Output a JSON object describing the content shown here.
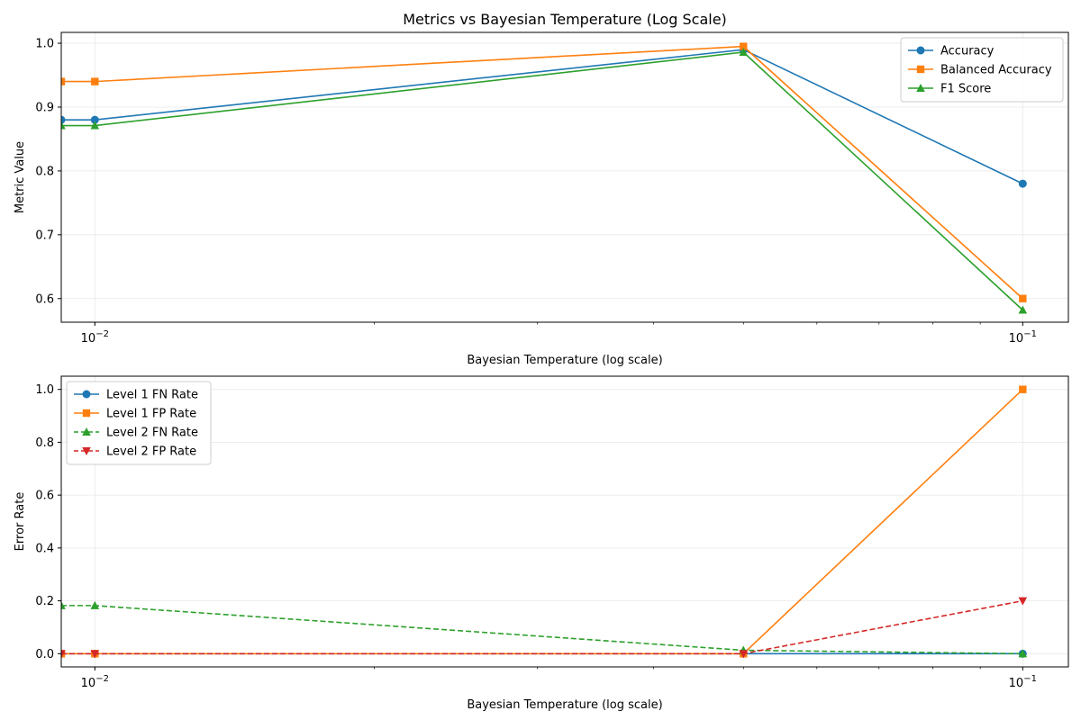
{
  "chart_data": [
    {
      "type": "line",
      "title": "Metrics vs Bayesian Temperature (Log Scale)",
      "xlabel": "Bayesian Temperature (log scale)",
      "ylabel": "Metric Value",
      "xscale": "log",
      "xlim": [
        0.0092,
        0.112
      ],
      "ylim": [
        0.563,
        1.017
      ],
      "x_ticks": [
        {
          "value": 0.01,
          "base": "10",
          "exp": "−2"
        },
        {
          "value": 0.1,
          "base": "10",
          "exp": "−1"
        }
      ],
      "y_ticks": [
        "0.6",
        "0.7",
        "0.8",
        "0.9",
        "1.0"
      ],
      "y_tick_values": [
        0.6,
        0.7,
        0.8,
        0.9,
        1.0
      ],
      "x": [
        0.0092,
        0.01,
        0.05,
        0.1
      ],
      "grid": true,
      "legend_position": "upper right",
      "series": [
        {
          "name": "Accuracy",
          "color": "#1f77b4",
          "marker": "circle",
          "dash": "solid",
          "values": [
            0.88,
            0.88,
            0.99,
            0.78
          ]
        },
        {
          "name": "Balanced Accuracy",
          "color": "#ff7f0e",
          "marker": "square",
          "dash": "solid",
          "values": [
            0.94,
            0.94,
            0.995,
            0.6
          ]
        },
        {
          "name": "F1 Score",
          "color": "#2ca02c",
          "marker": "triangle-up",
          "dash": "solid",
          "values": [
            0.871,
            0.871,
            0.986,
            0.582
          ]
        }
      ]
    },
    {
      "type": "line",
      "title": "",
      "xlabel": "Bayesian Temperature (log scale)",
      "ylabel": "Error Rate",
      "xscale": "log",
      "xlim": [
        0.0092,
        0.112
      ],
      "ylim": [
        -0.05,
        1.05
      ],
      "x_ticks": [
        {
          "value": 0.01,
          "base": "10",
          "exp": "−2"
        },
        {
          "value": 0.1,
          "base": "10",
          "exp": "−1"
        }
      ],
      "y_ticks": [
        "0.0",
        "0.2",
        "0.4",
        "0.6",
        "0.8",
        "1.0"
      ],
      "y_tick_values": [
        0.0,
        0.2,
        0.4,
        0.6,
        0.8,
        1.0
      ],
      "x": [
        0.0092,
        0.01,
        0.05,
        0.1
      ],
      "grid": true,
      "legend_position": "upper left",
      "series": [
        {
          "name": "Level 1 FN Rate",
          "color": "#1f77b4",
          "marker": "circle",
          "dash": "solid",
          "values": [
            0.0,
            0.0,
            0.0,
            0.0
          ]
        },
        {
          "name": "Level 1 FP Rate",
          "color": "#ff7f0e",
          "marker": "square",
          "dash": "solid",
          "values": [
            0.0,
            0.0,
            0.0,
            1.0
          ]
        },
        {
          "name": "Level 2 FN Rate",
          "color": "#2ca02c",
          "marker": "triangle-up",
          "dash": "dashed",
          "values": [
            0.182,
            0.182,
            0.013,
            0.0
          ]
        },
        {
          "name": "Level 2 FP Rate",
          "color": "#d62728",
          "marker": "triangle-down",
          "dash": "dashed",
          "values": [
            0.0,
            0.0,
            0.0,
            0.2
          ]
        }
      ]
    }
  ]
}
